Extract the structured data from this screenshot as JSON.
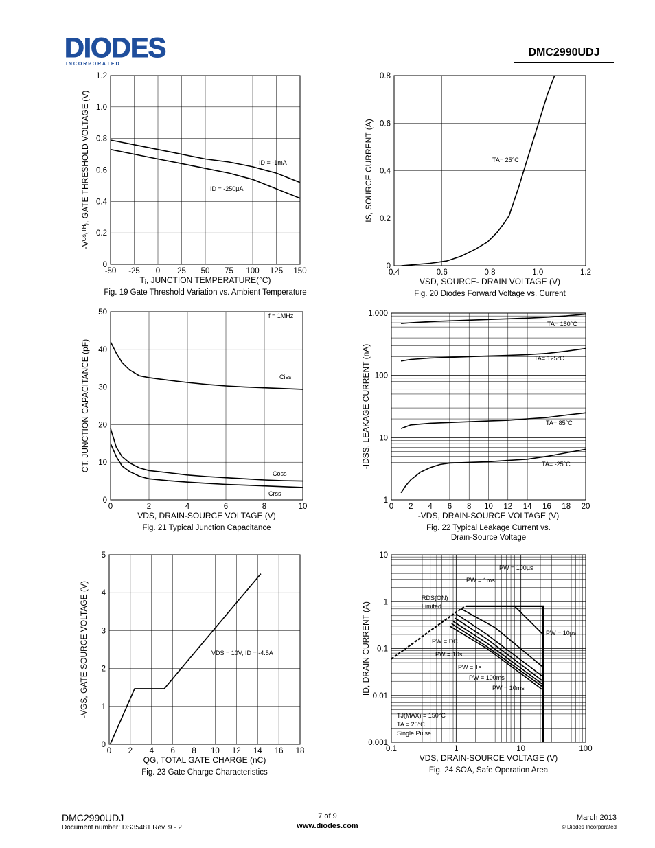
{
  "header": {
    "brand": "DIODES",
    "brand_sub": "I N C O R P O R A T E D",
    "part_number": "DMC2990UDJ"
  },
  "footer": {
    "part": "DMC2990UDJ",
    "document": "Document number: DS35481  Rev. 9 - 2",
    "page": "7 of 9",
    "website": "www.diodes.com",
    "date": "March 2013",
    "copyright": "© Diodes Incorporated"
  },
  "colors": {
    "line": "#000000",
    "grid": "#000000"
  },
  "chart_data": [
    {
      "id": "fig19",
      "type": "line",
      "caption": "Fig. 19 Gate Threshold Variation vs. Ambient Temperature",
      "xlabel": "Tⱼ, JUNCTION TEMPERATURE(°C)",
      "ylabel": "-Vᴳˢ₍ᵀᴴ₎, GATE THRESHOLD VOLTAGE (V)",
      "xlim": [
        -50,
        150
      ],
      "ylim": [
        0,
        1.2
      ],
      "xticks": [
        "-50",
        "-25",
        "0",
        "25",
        "50",
        "75",
        "100",
        "125",
        "150"
      ],
      "yticks": [
        "0",
        "0.2",
        "0.4",
        "0.6",
        "0.8",
        "1.0",
        "1.2"
      ],
      "series": [
        {
          "name": "I_D = -1mA",
          "label": "ID = -1mA",
          "x": [
            -50,
            -25,
            0,
            25,
            50,
            75,
            100,
            125,
            150
          ],
          "y": [
            0.79,
            0.76,
            0.73,
            0.7,
            0.67,
            0.65,
            0.62,
            0.58,
            0.52
          ]
        },
        {
          "name": "I_D = -250µA",
          "label": "ID = -250µA",
          "x": [
            -50,
            -25,
            0,
            25,
            50,
            75,
            100,
            125,
            150
          ],
          "y": [
            0.73,
            0.7,
            0.67,
            0.64,
            0.61,
            0.58,
            0.54,
            0.48,
            0.42
          ]
        }
      ]
    },
    {
      "id": "fig20",
      "type": "line",
      "caption": "Fig. 20 Diodes Forward Voltage vs. Current",
      "xlabel": "VSD, SOURCE- DRAIN VOLTAGE (V)",
      "ylabel": "IS, SOURCE CURRENT (A)",
      "xlim": [
        0.4,
        1.2
      ],
      "ylim": [
        0,
        0.8
      ],
      "xticks": [
        "0.4",
        "0.6",
        "0.8",
        "1.0",
        "1.2"
      ],
      "yticks": [
        "0",
        "0.2",
        "0.4",
        "0.6",
        "0.8"
      ],
      "annotation": "TA= 25°C",
      "series": [
        {
          "name": "TA=25C",
          "x": [
            0.43,
            0.55,
            0.62,
            0.68,
            0.74,
            0.79,
            0.83,
            0.86,
            0.88,
            0.92,
            0.96,
            1.0,
            1.04,
            1.07
          ],
          "y": [
            0.0,
            0.01,
            0.02,
            0.04,
            0.07,
            0.1,
            0.14,
            0.18,
            0.21,
            0.33,
            0.46,
            0.59,
            0.72,
            0.8
          ]
        }
      ]
    },
    {
      "id": "fig21",
      "type": "line",
      "caption": "Fig. 21 Typical Junction Capacitance",
      "xlabel": "VDS, DRAIN-SOURCE VOLTAGE (V)",
      "ylabel": "CT, JUNCTION CAPACITANCE (pF)",
      "xlim": [
        0,
        10
      ],
      "ylim": [
        0,
        50
      ],
      "xticks": [
        "0",
        "2",
        "4",
        "6",
        "8",
        "10"
      ],
      "yticks": [
        "0",
        "10",
        "20",
        "30",
        "40",
        "50"
      ],
      "annotation": "f = 1MHz",
      "series": [
        {
          "name": "Ciss",
          "x": [
            0,
            0.3,
            0.6,
            1,
            1.5,
            2,
            3,
            4,
            5,
            6,
            7,
            8,
            9,
            10
          ],
          "y": [
            42,
            39,
            36.5,
            34.5,
            33,
            32.5,
            31.8,
            31.2,
            30.7,
            30.3,
            30,
            29.8,
            29.6,
            29.4
          ]
        },
        {
          "name": "Coss",
          "x": [
            0,
            0.3,
            0.6,
            1,
            1.5,
            2,
            3,
            4,
            5,
            6,
            7,
            8,
            9,
            10
          ],
          "y": [
            19,
            14,
            11.5,
            9.8,
            8.5,
            7.8,
            7.2,
            6.6,
            6.2,
            5.9,
            5.6,
            5.3,
            5.1,
            5.0
          ]
        },
        {
          "name": "Crss",
          "x": [
            0,
            0.3,
            0.6,
            1,
            1.5,
            2,
            3,
            4,
            5,
            6,
            7,
            8,
            9,
            10
          ],
          "y": [
            15,
            11.5,
            9,
            7.5,
            6.3,
            5.6,
            5.1,
            4.7,
            4.4,
            4.1,
            3.9,
            3.7,
            3.5,
            3.3
          ]
        }
      ]
    },
    {
      "id": "fig22",
      "type": "line",
      "yscale": "log",
      "caption": "Fig. 22 Typical Leakage Current vs.",
      "caption2": "Drain-Source Voltage",
      "xlabel": "-VDS, DRAIN-SOURCE VOLTAGE (V)",
      "ylabel": "-IDSS, LEAKAGE CURRENT (nA)",
      "xlim": [
        0,
        20
      ],
      "ylim": [
        1,
        1000
      ],
      "xticks": [
        "0",
        "2",
        "4",
        "6",
        "8",
        "10",
        "12",
        "14",
        "16",
        "18",
        "20"
      ],
      "yticks": [
        "1",
        "10",
        "100",
        "1,000"
      ],
      "series": [
        {
          "name": "TA= 150°C",
          "x": [
            1,
            2,
            4,
            6,
            8,
            10,
            12,
            14,
            16,
            18,
            20
          ],
          "y": [
            680,
            700,
            730,
            750,
            770,
            790,
            810,
            830,
            860,
            900,
            960
          ]
        },
        {
          "name": "TA= 125°C",
          "x": [
            1,
            2,
            4,
            6,
            8,
            10,
            12,
            14,
            16,
            18,
            20
          ],
          "y": [
            170,
            180,
            190,
            195,
            200,
            205,
            210,
            215,
            225,
            245,
            270
          ]
        },
        {
          "name": "TA= 85°C",
          "x": [
            1,
            2,
            4,
            6,
            8,
            10,
            12,
            14,
            16,
            18,
            20
          ],
          "y": [
            14,
            16,
            17,
            17.5,
            18,
            18.5,
            19,
            20,
            21,
            23,
            25
          ]
        },
        {
          "name": "TA= -25°C",
          "x": [
            1,
            1.5,
            2,
            3,
            4,
            5,
            6,
            8,
            10,
            12,
            14,
            16,
            18,
            20
          ],
          "y": [
            1.3,
            1.7,
            2.1,
            2.8,
            3.3,
            3.7,
            3.9,
            4.0,
            4.1,
            4.3,
            4.5,
            5.0,
            5.7,
            6.5
          ]
        }
      ]
    },
    {
      "id": "fig23",
      "type": "line",
      "caption": "Fig. 23 Gate Charge Characteristics",
      "xlabel": "QG, TOTAL GATE CHARGE (nC)",
      "ylabel": "-VGS, GATE SOURCE VOLTAGE (V)",
      "xlim": [
        0,
        18
      ],
      "ylim": [
        0,
        5
      ],
      "xticks": [
        "0",
        "2",
        "4",
        "6",
        "8",
        "10",
        "12",
        "14",
        "16",
        "18"
      ],
      "yticks": [
        "0",
        "1",
        "2",
        "3",
        "4",
        "5"
      ],
      "annotation": "VDS = 10V, ID = -4.5A",
      "series": [
        {
          "name": "VGS",
          "x": [
            0.1,
            2.4,
            5.2,
            14.3
          ],
          "y": [
            0,
            1.47,
            1.47,
            4.5
          ]
        }
      ]
    },
    {
      "id": "fig24",
      "type": "line",
      "xscale": "log",
      "yscale": "log",
      "caption": "Fig. 24 SOA, Safe Operation Area",
      "xlabel": "VDS, DRAIN-SOURCE VOLTAGE (V)",
      "ylabel": "ID, DRAIN CURRENT (A)",
      "xlim": [
        0.1,
        100
      ],
      "ylim": [
        0.001,
        10
      ],
      "xticks": [
        "0.1",
        "1",
        "10",
        "100"
      ],
      "yticks": [
        "0.001",
        "0.01",
        "0.1",
        "1",
        "10"
      ],
      "labels": [
        "RDS(ON) Limited",
        "PW = 100µs",
        "PW = 1ms",
        "PW = 10µs",
        "PW = DC",
        "PW = 10s",
        "PW = 1s",
        "PW = 100ms",
        "PW = 10ms"
      ],
      "conditions": [
        "TJ(MAX) = 150°C",
        "TA = 25°C",
        "Single Pulse"
      ],
      "series": [
        {
          "name": "RDS(ON) Limited",
          "x": [
            0.1,
            0.5,
            1.0,
            1.4
          ],
          "y": [
            0.06,
            0.3,
            0.6,
            0.8
          ]
        },
        {
          "name": "PW = 10µs",
          "x": [
            1.4,
            22,
            22
          ],
          "y": [
            0.8,
            0.8,
            0.001
          ]
        },
        {
          "name": "PW = 100µs",
          "x": [
            1.4,
            8,
            22
          ],
          "y": [
            0.8,
            0.8,
            0.2
          ]
        },
        {
          "name": "PW = 1ms",
          "x": [
            1.2,
            4,
            22
          ],
          "y": [
            0.7,
            0.28,
            0.04
          ]
        },
        {
          "name": "PW = 10ms",
          "x": [
            1.0,
            3,
            22
          ],
          "y": [
            0.55,
            0.2,
            0.025
          ]
        },
        {
          "name": "PW = 100ms",
          "x": [
            0.95,
            3,
            22
          ],
          "y": [
            0.45,
            0.16,
            0.02
          ]
        },
        {
          "name": "PW = 1s",
          "x": [
            0.9,
            3,
            22
          ],
          "y": [
            0.38,
            0.13,
            0.017
          ]
        },
        {
          "name": "PW = 10s",
          "x": [
            0.85,
            3,
            22
          ],
          "y": [
            0.34,
            0.11,
            0.015
          ]
        },
        {
          "name": "PW = DC",
          "x": [
            0.8,
            3,
            22
          ],
          "y": [
            0.3,
            0.1,
            0.013
          ]
        }
      ]
    }
  ]
}
